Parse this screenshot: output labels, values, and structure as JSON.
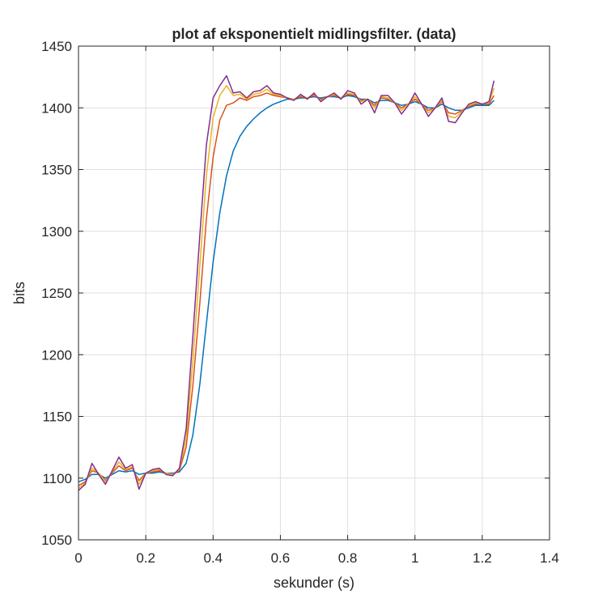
{
  "chart_data": {
    "type": "line",
    "title": "plot af eksponentielt midlingsfilter. (data)",
    "xlabel": "sekunder (s)",
    "ylabel": "bits",
    "xlim": [
      0,
      1.4
    ],
    "ylim": [
      1050,
      1450
    ],
    "xticks": [
      0,
      0.2,
      0.4,
      0.6,
      0.8,
      1,
      1.2,
      1.4
    ],
    "xtick_labels": [
      "0",
      "0.2",
      "0.4",
      "0.6",
      "0.8",
      "1",
      "1.2",
      "1.4"
    ],
    "yticks": [
      1050,
      1100,
      1150,
      1200,
      1250,
      1300,
      1350,
      1400,
      1450
    ],
    "ytick_labels": [
      "1050",
      "1100",
      "1150",
      "1200",
      "1250",
      "1300",
      "1350",
      "1400",
      "1450"
    ],
    "grid": true,
    "box": true,
    "colors": {
      "axis": "#262626",
      "grid": "#dfdfdf",
      "background": "#ffffff"
    },
    "series": [
      {
        "color": "#0072BD",
        "x": [
          0,
          0.02,
          0.04,
          0.06,
          0.08,
          0.1,
          0.12,
          0.14,
          0.16,
          0.18,
          0.2,
          0.22,
          0.24,
          0.26,
          0.28,
          0.3,
          0.32,
          0.34,
          0.36,
          0.38,
          0.4,
          0.42,
          0.44,
          0.46,
          0.48,
          0.5,
          0.52,
          0.54,
          0.56,
          0.58,
          0.6,
          0.62,
          0.64,
          0.66,
          0.68,
          0.7,
          0.72,
          0.74,
          0.76,
          0.78,
          0.8,
          0.82,
          0.84,
          0.86,
          0.88,
          0.9,
          0.92,
          0.94,
          0.96,
          0.98,
          1.0,
          1.02,
          1.04,
          1.06,
          1.08,
          1.1,
          1.12,
          1.14,
          1.16,
          1.18,
          1.2,
          1.22,
          1.235
        ],
        "y": [
          1097,
          1099,
          1103,
          1103,
          1100,
          1103,
          1106,
          1105,
          1106,
          1103,
          1104,
          1104,
          1105,
          1104,
          1104,
          1105,
          1112,
          1135,
          1175,
          1225,
          1275,
          1315,
          1345,
          1365,
          1377,
          1385,
          1391,
          1396,
          1400,
          1403,
          1405,
          1407,
          1407,
          1408,
          1408,
          1409,
          1408,
          1409,
          1409,
          1408,
          1410,
          1409,
          1407,
          1407,
          1404,
          1406,
          1406,
          1404,
          1402,
          1403,
          1405,
          1403,
          1400,
          1400,
          1403,
          1400,
          1398,
          1398,
          1400,
          1402,
          1402,
          1402,
          1406
        ]
      },
      {
        "color": "#D95319",
        "x": [
          0,
          0.02,
          0.04,
          0.06,
          0.08,
          0.1,
          0.12,
          0.14,
          0.16,
          0.18,
          0.2,
          0.22,
          0.24,
          0.26,
          0.28,
          0.3,
          0.32,
          0.34,
          0.36,
          0.38,
          0.4,
          0.42,
          0.44,
          0.46,
          0.48,
          0.5,
          0.52,
          0.54,
          0.56,
          0.58,
          0.6,
          0.62,
          0.64,
          0.66,
          0.68,
          0.7,
          0.72,
          0.74,
          0.76,
          0.78,
          0.8,
          0.82,
          0.84,
          0.86,
          0.88,
          0.9,
          0.92,
          0.94,
          0.96,
          0.98,
          1.0,
          1.02,
          1.04,
          1.06,
          1.08,
          1.1,
          1.12,
          1.14,
          1.16,
          1.18,
          1.2,
          1.22,
          1.235
        ],
        "y": [
          1094,
          1097,
          1106,
          1104,
          1098,
          1104,
          1110,
          1106,
          1108,
          1098,
          1104,
          1105,
          1106,
          1104,
          1103,
          1106,
          1125,
          1175,
          1240,
          1310,
          1360,
          1390,
          1402,
          1404,
          1408,
          1406,
          1409,
          1410,
          1412,
          1410,
          1409,
          1408,
          1407,
          1409,
          1408,
          1410,
          1407,
          1409,
          1410,
          1408,
          1411,
          1410,
          1406,
          1407,
          1402,
          1408,
          1407,
          1404,
          1400,
          1403,
          1407,
          1403,
          1398,
          1400,
          1405,
          1396,
          1395,
          1398,
          1401,
          1403,
          1403,
          1403,
          1410
        ]
      },
      {
        "color": "#EDB120",
        "x": [
          0,
          0.02,
          0.04,
          0.06,
          0.08,
          0.1,
          0.12,
          0.14,
          0.16,
          0.18,
          0.2,
          0.22,
          0.24,
          0.26,
          0.28,
          0.3,
          0.32,
          0.34,
          0.36,
          0.38,
          0.4,
          0.42,
          0.44,
          0.46,
          0.48,
          0.5,
          0.52,
          0.54,
          0.56,
          0.58,
          0.6,
          0.62,
          0.64,
          0.66,
          0.68,
          0.7,
          0.72,
          0.74,
          0.76,
          0.78,
          0.8,
          0.82,
          0.84,
          0.86,
          0.88,
          0.9,
          0.92,
          0.94,
          0.96,
          0.98,
          1.0,
          1.02,
          1.04,
          1.06,
          1.08,
          1.1,
          1.12,
          1.14,
          1.16,
          1.18,
          1.2,
          1.22,
          1.235
        ],
        "y": [
          1092,
          1096,
          1108,
          1104,
          1097,
          1105,
          1113,
          1107,
          1109,
          1095,
          1104,
          1106,
          1107,
          1104,
          1103,
          1107,
          1132,
          1195,
          1270,
          1345,
          1392,
          1410,
          1418,
          1410,
          1411,
          1407,
          1411,
          1412,
          1415,
          1411,
          1410,
          1408,
          1407,
          1410,
          1408,
          1411,
          1406,
          1409,
          1411,
          1408,
          1412,
          1411,
          1405,
          1407,
          1400,
          1409,
          1408,
          1404,
          1398,
          1403,
          1409,
          1403,
          1396,
          1400,
          1406,
          1393,
          1392,
          1397,
          1402,
          1404,
          1403,
          1404,
          1416
        ]
      },
      {
        "color": "#7E2F8E",
        "x": [
          0,
          0.02,
          0.04,
          0.06,
          0.08,
          0.1,
          0.12,
          0.14,
          0.16,
          0.18,
          0.2,
          0.22,
          0.24,
          0.26,
          0.28,
          0.3,
          0.32,
          0.34,
          0.36,
          0.38,
          0.4,
          0.42,
          0.44,
          0.46,
          0.48,
          0.5,
          0.52,
          0.54,
          0.56,
          0.58,
          0.6,
          0.62,
          0.64,
          0.66,
          0.68,
          0.7,
          0.72,
          0.74,
          0.76,
          0.78,
          0.8,
          0.82,
          0.84,
          0.86,
          0.88,
          0.9,
          0.92,
          0.94,
          0.96,
          0.98,
          1.0,
          1.02,
          1.04,
          1.06,
          1.08,
          1.1,
          1.12,
          1.14,
          1.16,
          1.18,
          1.2,
          1.22,
          1.235
        ],
        "y": [
          1090,
          1095,
          1112,
          1103,
          1095,
          1106,
          1117,
          1108,
          1111,
          1091,
          1104,
          1107,
          1108,
          1103,
          1102,
          1108,
          1140,
          1215,
          1295,
          1370,
          1408,
          1418,
          1426,
          1412,
          1413,
          1408,
          1413,
          1414,
          1418,
          1412,
          1411,
          1408,
          1406,
          1411,
          1407,
          1412,
          1405,
          1409,
          1412,
          1407,
          1414,
          1412,
          1403,
          1407,
          1396,
          1410,
          1410,
          1404,
          1395,
          1402,
          1412,
          1403,
          1393,
          1400,
          1408,
          1389,
          1388,
          1396,
          1403,
          1405,
          1403,
          1405,
          1422
        ]
      }
    ]
  }
}
